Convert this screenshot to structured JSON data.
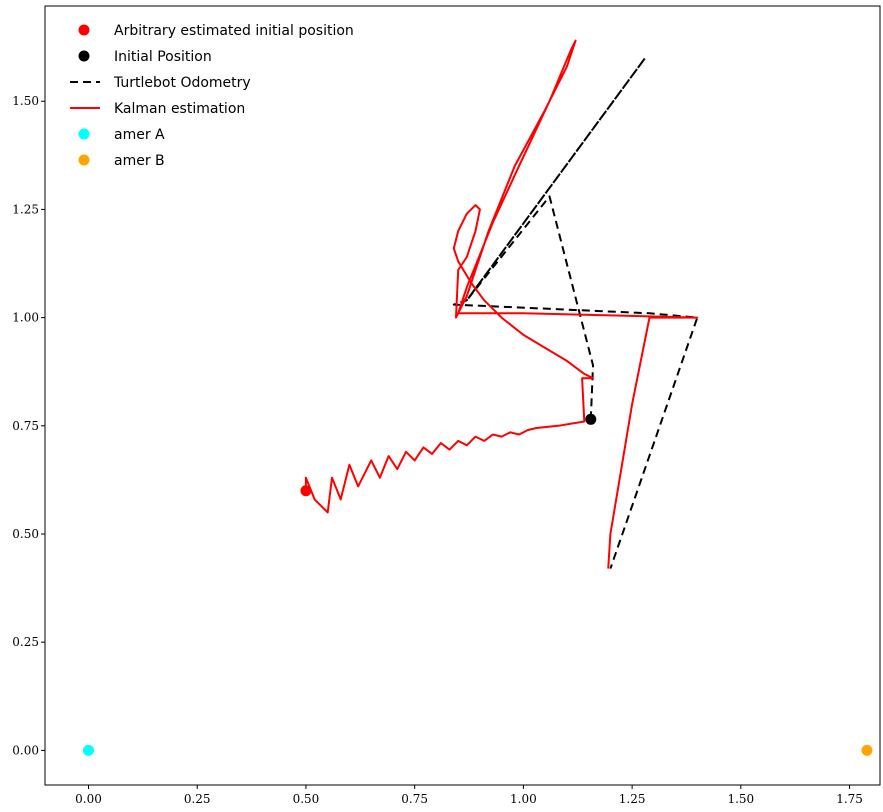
{
  "chart_data": {
    "type": "line",
    "title": "",
    "xlabel": "",
    "ylabel": "",
    "xlim": [
      -0.1,
      1.82
    ],
    "ylim": [
      -0.08,
      1.72
    ],
    "grid": false,
    "legend_position": "top-left",
    "x_ticks": [
      {
        "value": 0.0,
        "label": "0.00"
      },
      {
        "value": 0.25,
        "label": "0.25"
      },
      {
        "value": 0.5,
        "label": "0.50"
      },
      {
        "value": 0.75,
        "label": "0.75"
      },
      {
        "value": 1.0,
        "label": "1.00"
      },
      {
        "value": 1.25,
        "label": "1.25"
      },
      {
        "value": 1.5,
        "label": "1.50"
      },
      {
        "value": 1.75,
        "label": "1.75"
      }
    ],
    "y_ticks": [
      {
        "value": 0.0,
        "label": "0.00"
      },
      {
        "value": 0.25,
        "label": "0.25"
      },
      {
        "value": 0.5,
        "label": "0.50"
      },
      {
        "value": 0.75,
        "label": "0.75"
      },
      {
        "value": 1.0,
        "label": "1.00"
      },
      {
        "value": 1.25,
        "label": "1.25"
      },
      {
        "value": 1.5,
        "label": "1.50"
      }
    ],
    "series": [
      {
        "name": "Arbitrary estimated initial position",
        "kind": "point",
        "color": "#ff0000",
        "points": [
          [
            0.5,
            0.6
          ]
        ]
      },
      {
        "name": "Initial Position",
        "kind": "point",
        "color": "#000000",
        "points": [
          [
            1.155,
            0.765
          ]
        ]
      },
      {
        "name": "Turtlebot Odometry",
        "kind": "dashed-line",
        "color": "#000000",
        "points": [
          [
            1.155,
            0.765
          ],
          [
            1.16,
            0.89
          ],
          [
            1.06,
            1.28
          ],
          [
            0.87,
            1.04
          ],
          [
            1.28,
            1.6
          ],
          [
            0.87,
            1.04
          ],
          [
            0.84,
            1.03
          ],
          [
            1.29,
            1.01
          ],
          [
            1.4,
            1.0
          ],
          [
            1.2,
            0.42
          ]
        ]
      },
      {
        "name": "Kalman estimation",
        "kind": "line",
        "color": "#ff0000",
        "points": [
          [
            0.5,
            0.6
          ],
          [
            0.5,
            0.63
          ],
          [
            0.52,
            0.58
          ],
          [
            0.55,
            0.55
          ],
          [
            0.56,
            0.63
          ],
          [
            0.58,
            0.58
          ],
          [
            0.6,
            0.66
          ],
          [
            0.62,
            0.61
          ],
          [
            0.65,
            0.67
          ],
          [
            0.67,
            0.63
          ],
          [
            0.69,
            0.68
          ],
          [
            0.71,
            0.65
          ],
          [
            0.73,
            0.69
          ],
          [
            0.75,
            0.67
          ],
          [
            0.77,
            0.7
          ],
          [
            0.79,
            0.685
          ],
          [
            0.81,
            0.71
          ],
          [
            0.83,
            0.695
          ],
          [
            0.85,
            0.715
          ],
          [
            0.87,
            0.705
          ],
          [
            0.89,
            0.725
          ],
          [
            0.91,
            0.715
          ],
          [
            0.93,
            0.73
          ],
          [
            0.95,
            0.725
          ],
          [
            0.97,
            0.735
          ],
          [
            0.99,
            0.73
          ],
          [
            1.01,
            0.74
          ],
          [
            1.03,
            0.745
          ],
          [
            1.08,
            0.75
          ],
          [
            1.14,
            0.76
          ],
          [
            1.135,
            0.86
          ],
          [
            1.16,
            0.86
          ],
          [
            1.14,
            0.87
          ],
          [
            1.1,
            0.9
          ],
          [
            1.05,
            0.93
          ],
          [
            1.0,
            0.96
          ],
          [
            0.95,
            1.0
          ],
          [
            0.91,
            1.04
          ],
          [
            0.88,
            1.08
          ],
          [
            0.85,
            1.13
          ],
          [
            0.84,
            1.16
          ],
          [
            0.85,
            1.2
          ],
          [
            0.87,
            1.24
          ],
          [
            0.89,
            1.26
          ],
          [
            0.9,
            1.25
          ],
          [
            0.89,
            1.2
          ],
          [
            0.87,
            1.14
          ],
          [
            0.85,
            1.11
          ],
          [
            0.845,
            1.0
          ],
          [
            0.85,
            1.01
          ],
          [
            0.87,
            1.05
          ],
          [
            0.92,
            1.2
          ],
          [
            0.98,
            1.35
          ],
          [
            1.05,
            1.48
          ],
          [
            1.1,
            1.58
          ],
          [
            1.12,
            1.64
          ],
          [
            1.11,
            1.62
          ],
          [
            1.06,
            1.5
          ],
          [
            0.99,
            1.35
          ],
          [
            0.93,
            1.22
          ],
          [
            0.89,
            1.12
          ],
          [
            0.87,
            1.07
          ],
          [
            0.85,
            1.01
          ],
          [
            1.0,
            1.01
          ],
          [
            1.2,
            1.005
          ],
          [
            1.4,
            1.0
          ],
          [
            1.29,
            1.0
          ],
          [
            1.25,
            0.8
          ],
          [
            1.22,
            0.62
          ],
          [
            1.2,
            0.5
          ],
          [
            1.195,
            0.42
          ]
        ]
      },
      {
        "name": "amer A",
        "kind": "point",
        "color": "#00ffff",
        "points": [
          [
            0.0,
            0.0
          ]
        ]
      },
      {
        "name": "amer B",
        "kind": "point",
        "color": "#ffa500",
        "points": [
          [
            1.79,
            0.0
          ]
        ]
      }
    ],
    "legend": [
      {
        "label": "Arbitrary estimated initial position",
        "symbol": "dot",
        "color": "#ff0000"
      },
      {
        "label": "Initial Position",
        "symbol": "dot",
        "color": "#000000"
      },
      {
        "label": "Turtlebot Odometry",
        "symbol": "dash",
        "color": "#000000"
      },
      {
        "label": "Kalman estimation",
        "symbol": "line",
        "color": "#ff0000"
      },
      {
        "label": "amer A",
        "symbol": "dot",
        "color": "#00ffff"
      },
      {
        "label": "amer B",
        "symbol": "dot",
        "color": "#ffa500"
      }
    ]
  }
}
